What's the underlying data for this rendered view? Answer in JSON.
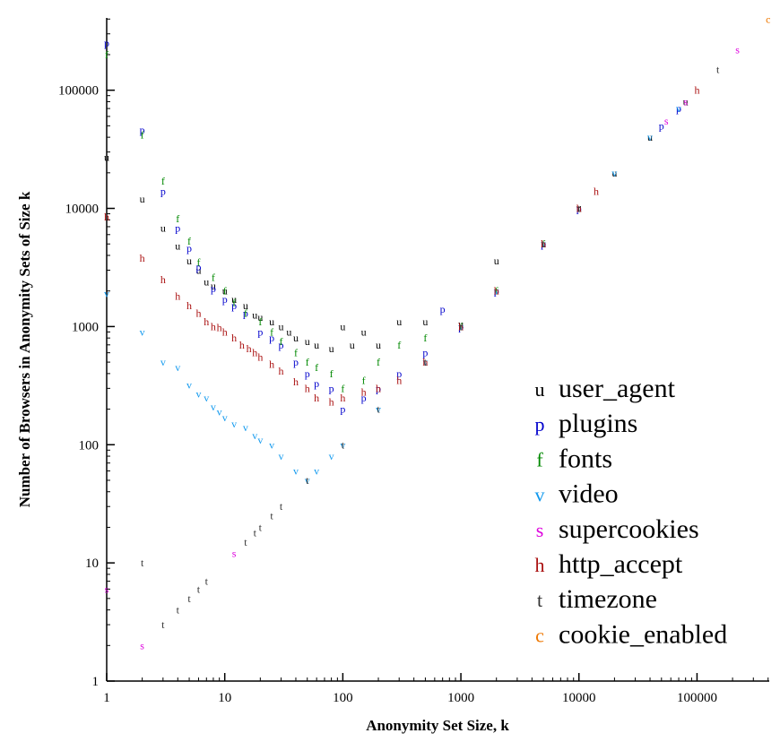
{
  "chart_data": {
    "type": "scatter",
    "xlabel": "Anonymity Set Size, k",
    "ylabel": "Number of Browsers in Anonymity Sets of Size k",
    "xscale": "log",
    "yscale": "log",
    "xlim": [
      1,
      409000
    ],
    "ylim": [
      1,
      409000
    ],
    "xticks": [
      1,
      10,
      100,
      1000,
      10000,
      100000
    ],
    "yticks": [
      1,
      10,
      100,
      1000,
      10000,
      100000
    ],
    "xtick_labels": [
      "1",
      "10",
      "100",
      "1000",
      "10000",
      "100000"
    ],
    "ytick_labels": [
      "1",
      "10",
      "100",
      "1000",
      "10000",
      "100000"
    ],
    "grid": false,
    "legend_position": "bottom-right",
    "series": [
      {
        "name": "user_agent",
        "marker": "u",
        "color": "#000000",
        "points": [
          [
            1,
            27000
          ],
          [
            2,
            12000
          ],
          [
            3,
            6800
          ],
          [
            4,
            4800
          ],
          [
            5,
            3600
          ],
          [
            6,
            3000
          ],
          [
            7,
            2400
          ],
          [
            8,
            2200
          ],
          [
            10,
            2000
          ],
          [
            12,
            1700
          ],
          [
            15,
            1500
          ],
          [
            18,
            1250
          ],
          [
            20,
            1200
          ],
          [
            25,
            1100
          ],
          [
            30,
            1000
          ],
          [
            35,
            900
          ],
          [
            40,
            800
          ],
          [
            50,
            750
          ],
          [
            60,
            700
          ],
          [
            80,
            650
          ],
          [
            100,
            1000
          ],
          [
            120,
            700
          ],
          [
            150,
            900
          ],
          [
            200,
            700
          ],
          [
            300,
            1100
          ],
          [
            500,
            1100
          ],
          [
            1000,
            1050
          ],
          [
            2000,
            3600
          ],
          [
            5000,
            5000
          ],
          [
            10000,
            10200
          ],
          [
            20000,
            20000
          ],
          [
            40000,
            40000
          ],
          [
            80000,
            80000
          ]
        ]
      },
      {
        "name": "plugins",
        "marker": "p",
        "color": "#0000cc",
        "points": [
          [
            1,
            250000
          ],
          [
            2,
            46000
          ],
          [
            3,
            14000
          ],
          [
            4,
            6800
          ],
          [
            5,
            4600
          ],
          [
            6,
            3200
          ],
          [
            8,
            2100
          ],
          [
            10,
            1700
          ],
          [
            12,
            1500
          ],
          [
            15,
            1300
          ],
          [
            20,
            900
          ],
          [
            25,
            800
          ],
          [
            30,
            700
          ],
          [
            40,
            500
          ],
          [
            50,
            400
          ],
          [
            60,
            330
          ],
          [
            80,
            300
          ],
          [
            100,
            200
          ],
          [
            150,
            250
          ],
          [
            200,
            300
          ],
          [
            300,
            400
          ],
          [
            500,
            600
          ],
          [
            700,
            1400
          ],
          [
            1000,
            1000
          ],
          [
            2000,
            2000
          ],
          [
            5000,
            5000
          ],
          [
            10000,
            10000
          ],
          [
            50000,
            50000
          ],
          [
            70000,
            70000
          ]
        ]
      },
      {
        "name": "fonts",
        "marker": "f",
        "color": "#008800",
        "points": [
          [
            1,
            200000
          ],
          [
            2,
            42000
          ],
          [
            3,
            17000
          ],
          [
            4,
            8200
          ],
          [
            5,
            5300
          ],
          [
            6,
            3500
          ],
          [
            8,
            2600
          ],
          [
            10,
            2000
          ],
          [
            12,
            1600
          ],
          [
            15,
            1300
          ],
          [
            20,
            1100
          ],
          [
            25,
            900
          ],
          [
            30,
            750
          ],
          [
            40,
            600
          ],
          [
            50,
            500
          ],
          [
            60,
            450
          ],
          [
            80,
            400
          ],
          [
            100,
            300
          ],
          [
            150,
            350
          ],
          [
            200,
            500
          ],
          [
            300,
            700
          ],
          [
            500,
            800
          ],
          [
            1000,
            1000
          ],
          [
            2000,
            2000
          ],
          [
            5000,
            5000
          ]
        ]
      },
      {
        "name": "video",
        "marker": "v",
        "color": "#1199ee",
        "points": [
          [
            1,
            1900
          ],
          [
            2,
            900
          ],
          [
            3,
            500
          ],
          [
            4,
            450
          ],
          [
            5,
            320
          ],
          [
            6,
            270
          ],
          [
            7,
            250
          ],
          [
            8,
            210
          ],
          [
            9,
            190
          ],
          [
            10,
            170
          ],
          [
            12,
            150
          ],
          [
            15,
            140
          ],
          [
            18,
            120
          ],
          [
            20,
            110
          ],
          [
            25,
            100
          ],
          [
            30,
            80
          ],
          [
            40,
            60
          ],
          [
            50,
            50
          ],
          [
            60,
            60
          ],
          [
            80,
            80
          ],
          [
            100,
            100
          ],
          [
            200,
            200
          ],
          [
            500,
            500
          ],
          [
            1000,
            1000
          ],
          [
            2000,
            2000
          ],
          [
            5000,
            5000
          ],
          [
            20000,
            20000
          ],
          [
            40000,
            40000
          ],
          [
            70000,
            70000
          ]
        ]
      },
      {
        "name": "supercookies",
        "marker": "s",
        "color": "#dd00dd",
        "points": [
          [
            1,
            6
          ],
          [
            2,
            2
          ],
          [
            12,
            12
          ],
          [
            55000,
            55000
          ],
          [
            80000,
            80000
          ],
          [
            220000,
            220000
          ]
        ]
      },
      {
        "name": "http_accept",
        "marker": "h",
        "color": "#aa1111",
        "points": [
          [
            1,
            8500
          ],
          [
            2,
            3800
          ],
          [
            3,
            2500
          ],
          [
            4,
            1800
          ],
          [
            5,
            1500
          ],
          [
            6,
            1300
          ],
          [
            7,
            1100
          ],
          [
            8,
            1000
          ],
          [
            9,
            980
          ],
          [
            10,
            900
          ],
          [
            12,
            800
          ],
          [
            14,
            700
          ],
          [
            16,
            650
          ],
          [
            18,
            600
          ],
          [
            20,
            550
          ],
          [
            25,
            480
          ],
          [
            30,
            420
          ],
          [
            40,
            340
          ],
          [
            50,
            300
          ],
          [
            60,
            250
          ],
          [
            80,
            230
          ],
          [
            100,
            250
          ],
          [
            150,
            280
          ],
          [
            200,
            300
          ],
          [
            300,
            350
          ],
          [
            500,
            500
          ],
          [
            1000,
            1000
          ],
          [
            2000,
            2000
          ],
          [
            5000,
            5000
          ],
          [
            10000,
            10000
          ],
          [
            14000,
            14000
          ],
          [
            100000,
            100000
          ]
        ]
      },
      {
        "name": "timezone",
        "marker": "t",
        "color": "#333333",
        "points": [
          [
            2,
            10
          ],
          [
            3,
            3
          ],
          [
            4,
            4
          ],
          [
            5,
            5
          ],
          [
            6,
            6
          ],
          [
            7,
            7
          ],
          [
            15,
            15
          ],
          [
            18,
            18
          ],
          [
            20,
            20
          ],
          [
            25,
            25
          ],
          [
            30,
            30
          ],
          [
            50,
            50
          ],
          [
            100,
            100
          ],
          [
            200,
            200
          ],
          [
            500,
            500
          ],
          [
            1000,
            1000
          ],
          [
            5000,
            5000
          ],
          [
            10000,
            10000
          ],
          [
            150000,
            150000
          ]
        ]
      },
      {
        "name": "cookie_enabled",
        "marker": "c",
        "color": "#ee7700",
        "points": [
          [
            400000,
            400000
          ]
        ]
      }
    ]
  }
}
